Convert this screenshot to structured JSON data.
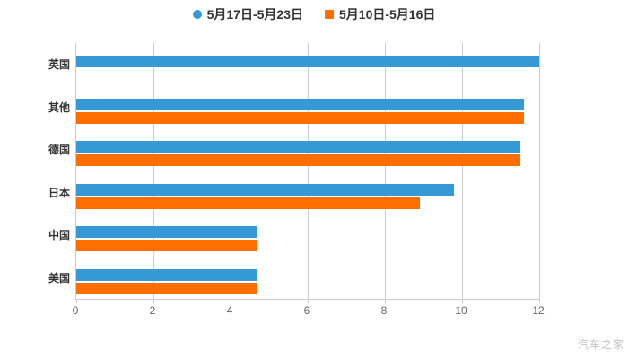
{
  "watermark": "汽车之家",
  "colors": {
    "series_blue": "#3499d5",
    "series_orange": "#ff6e00",
    "grid": "#cccccc",
    "axis_label": "#333333",
    "tick_label": "#666666",
    "watermark": "#c4c4c4"
  },
  "chart_data": {
    "type": "bar",
    "orientation": "horizontal",
    "title": "",
    "xlabel": "",
    "ylabel": "",
    "categories": [
      "英国",
      "其他",
      "德国",
      "日本",
      "中国",
      "美国"
    ],
    "series": [
      {
        "name": "5月17日-5月23日",
        "color": "#3499d5",
        "marker": "circle",
        "values": [
          12,
          11.6,
          11.5,
          9.8,
          4.7,
          4.7
        ]
      },
      {
        "name": "5月10日-5月16日",
        "color": "#ff6e00",
        "marker": "rect",
        "values": [
          null,
          11.6,
          11.5,
          8.9,
          4.7,
          4.7
        ]
      }
    ],
    "xlim": [
      0,
      12
    ],
    "x_ticks": [
      0,
      2,
      4,
      6,
      8,
      10,
      12
    ],
    "grid": true,
    "legend_position": "top"
  }
}
